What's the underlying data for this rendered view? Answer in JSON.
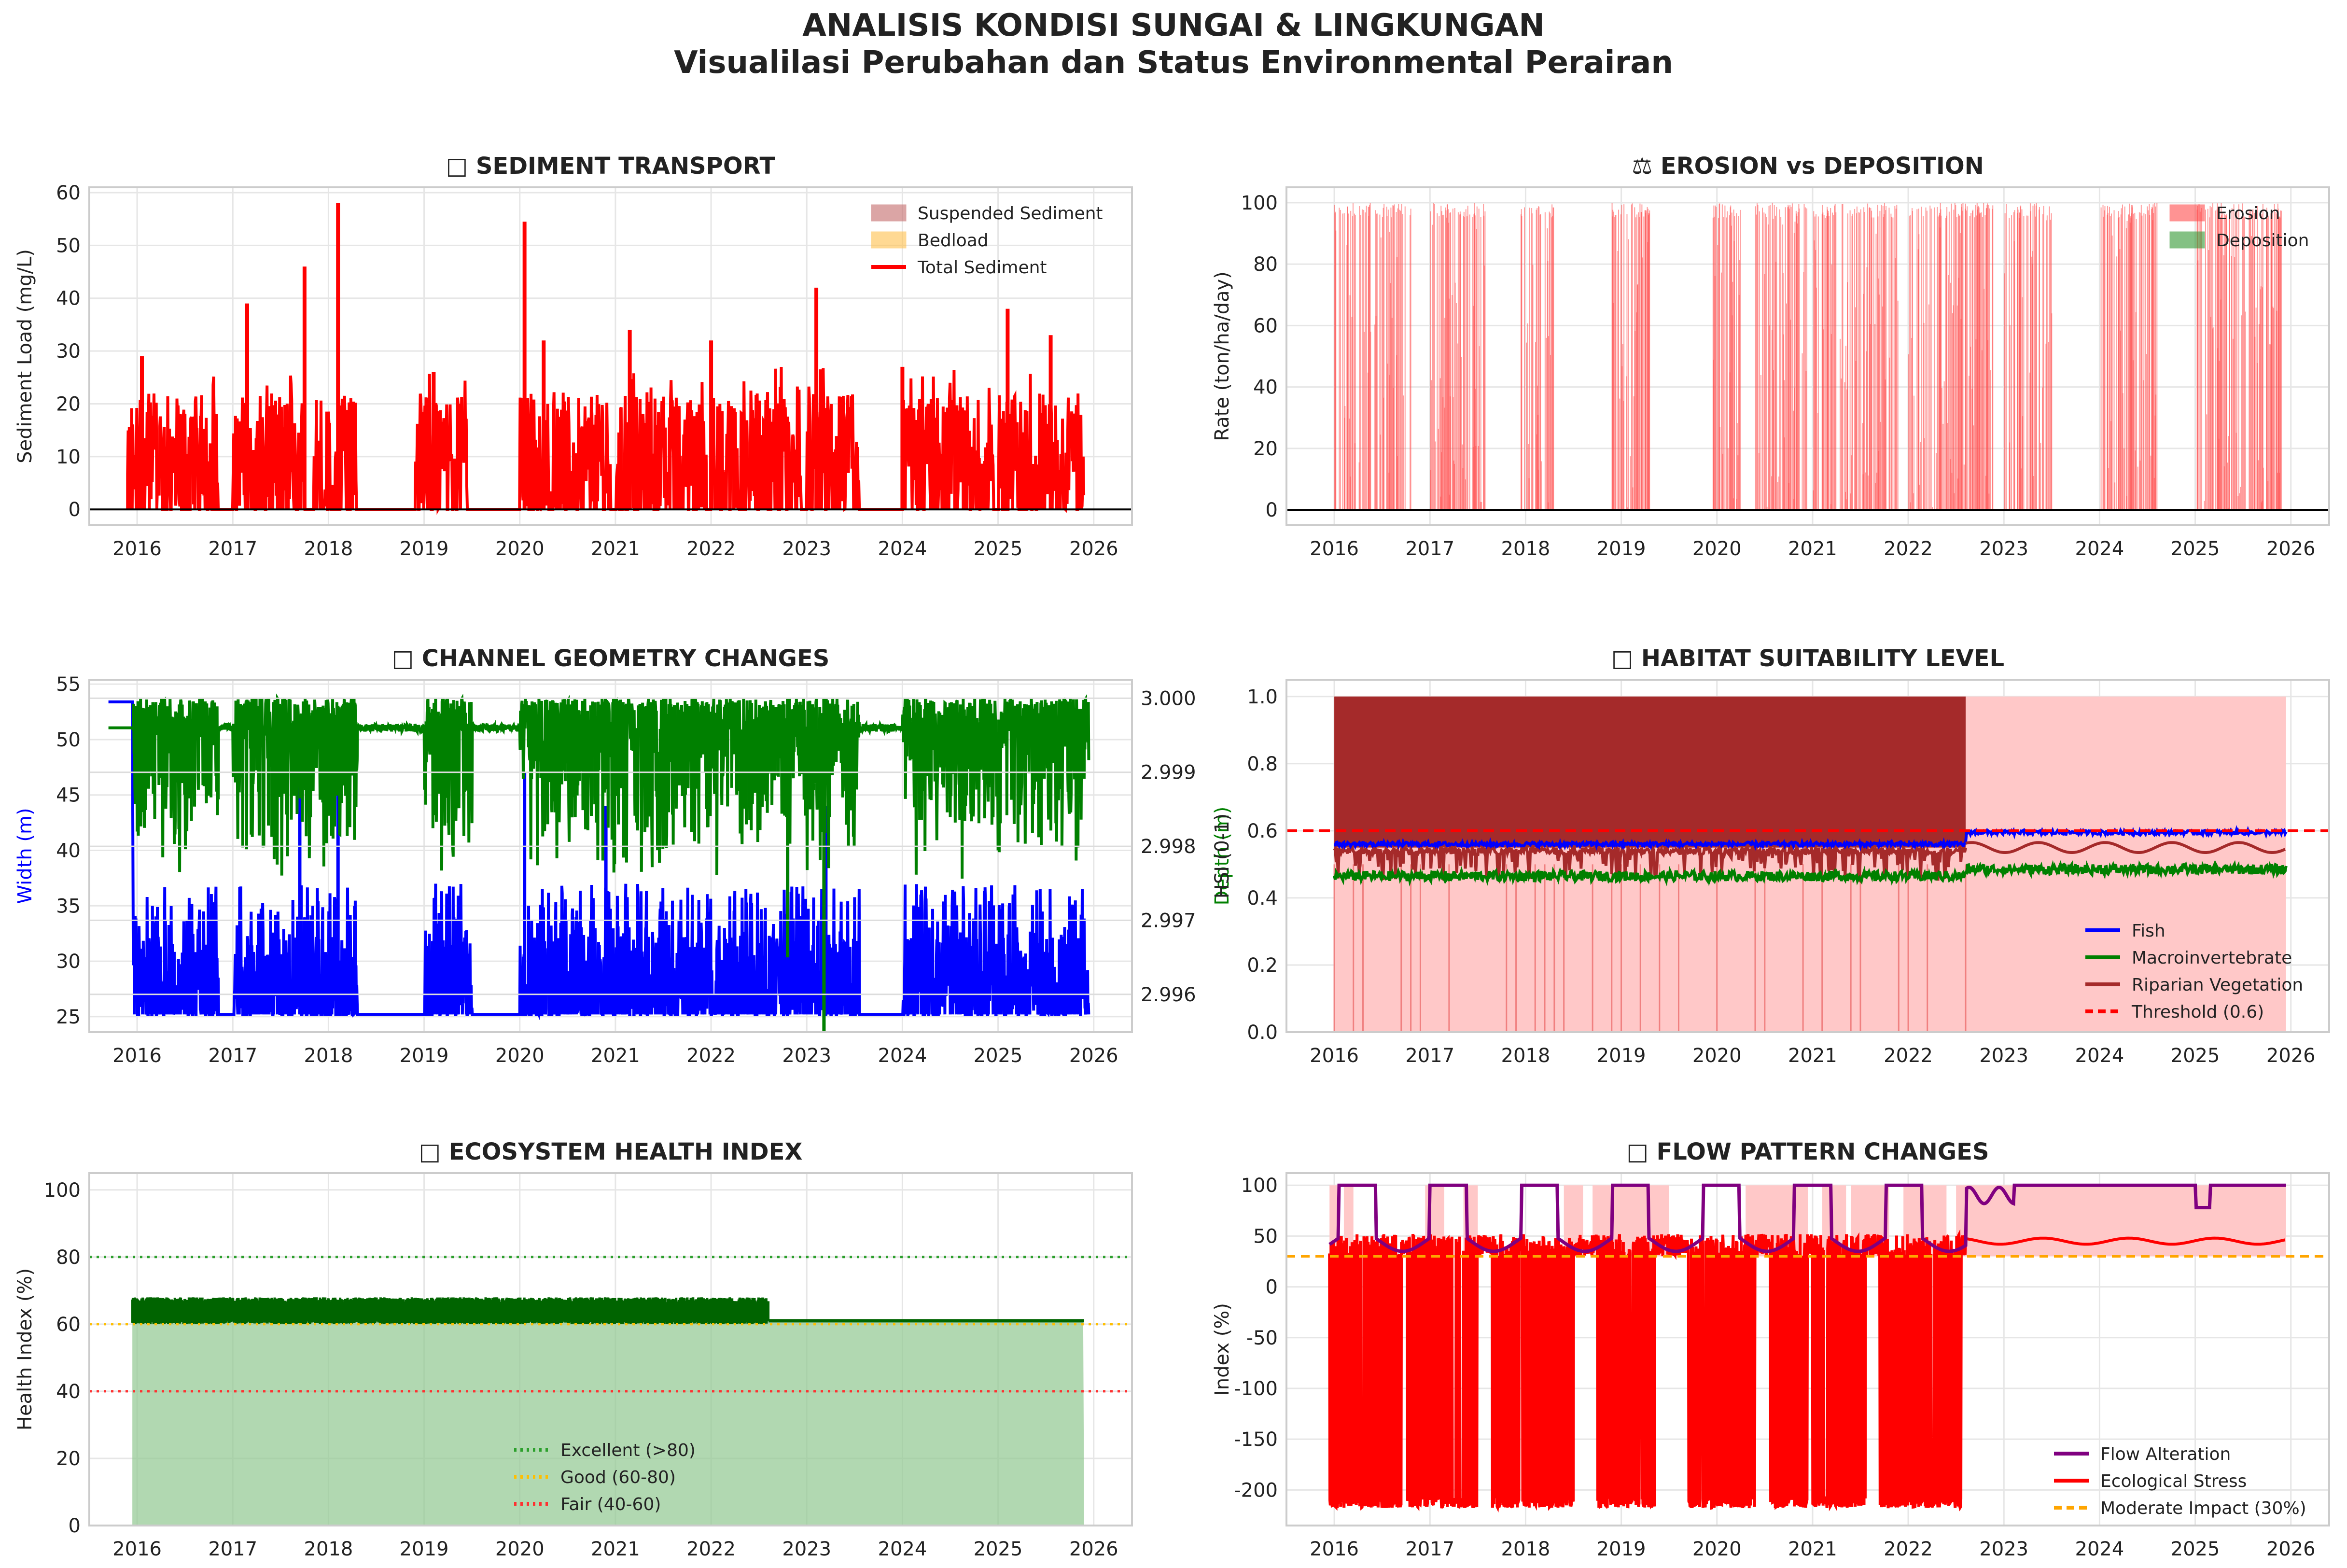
{
  "figure": {
    "title": "ANALISIS KONDISI SUNGAI & LINGKUNGAN",
    "subtitle": "Visualilasi Perubahan dan Status Environmental Perairan"
  },
  "chart_data": [
    {
      "id": "sediment",
      "type": "area",
      "title": "□ SEDIMENT TRANSPORT",
      "xlabel": "",
      "ylabel": "Sediment Load (mg/L)",
      "xlim": [
        2015.5,
        2026.4
      ],
      "ylim": [
        -3,
        61
      ],
      "xticks": [
        "2016",
        "2017",
        "2018",
        "2019",
        "2020",
        "2021",
        "2022",
        "2023",
        "2024",
        "2025",
        "2026"
      ],
      "yticks": [
        0,
        10,
        20,
        30,
        40,
        50,
        60
      ],
      "grid": true,
      "legend": "top-right",
      "series": [
        {
          "name": "Suspended Sediment",
          "kind": "area",
          "color": "#c46a6a"
        },
        {
          "name": "Bedload",
          "kind": "area",
          "color": "#ffc04d"
        },
        {
          "name": "Total Sediment",
          "kind": "line",
          "color": "#ff0000"
        }
      ],
      "wet_seasons": [
        [
          2015.9,
          2016.85
        ],
        [
          2017.0,
          2017.75
        ],
        [
          2017.85,
          2018.3
        ],
        [
          2018.9,
          2019.45
        ],
        [
          2020.0,
          2020.95
        ],
        [
          2021.0,
          2021.95
        ],
        [
          2022.0,
          2022.95
        ],
        [
          2023.0,
          2023.55
        ],
        [
          2024.0,
          2024.95
        ],
        [
          2025.0,
          2025.9
        ]
      ],
      "peaks": [
        [
          2016.05,
          29
        ],
        [
          2017.15,
          39
        ],
        [
          2017.75,
          46
        ],
        [
          2018.1,
          58
        ],
        [
          2019.1,
          26
        ],
        [
          2020.05,
          54.5
        ],
        [
          2020.25,
          32
        ],
        [
          2021.15,
          34
        ],
        [
          2022.0,
          32
        ],
        [
          2023.1,
          42
        ],
        [
          2024.0,
          27
        ],
        [
          2025.1,
          38
        ],
        [
          2025.55,
          33
        ]
      ],
      "typical_max": 22
    },
    {
      "id": "erosion",
      "type": "area",
      "title": "⚖ EROSION vs DEPOSITION",
      "xlabel": "",
      "ylabel": "Rate (ton/ha/day)",
      "xlim": [
        2015.5,
        2026.4
      ],
      "ylim": [
        -5,
        105
      ],
      "xticks": [
        "2016",
        "2017",
        "2018",
        "2019",
        "2020",
        "2021",
        "2022",
        "2023",
        "2024",
        "2025",
        "2026"
      ],
      "yticks": [
        0,
        20,
        40,
        60,
        80,
        100
      ],
      "grid": true,
      "legend": "top-right",
      "series": [
        {
          "name": "Erosion",
          "kind": "area",
          "color": "#ff4d4d"
        },
        {
          "name": "Deposition",
          "kind": "area",
          "color": "#339933"
        }
      ],
      "wet_seasons": [
        [
          2016.0,
          2016.8
        ],
        [
          2017.0,
          2017.6
        ],
        [
          2017.95,
          2018.3
        ],
        [
          2018.9,
          2019.3
        ],
        [
          2019.95,
          2020.25
        ],
        [
          2020.4,
          2020.95
        ],
        [
          2021.0,
          2021.9
        ],
        [
          2022.0,
          2022.9
        ],
        [
          2023.0,
          2023.5
        ],
        [
          2024.0,
          2024.6
        ],
        [
          2025.0,
          2025.9
        ]
      ],
      "max_value": 100
    },
    {
      "id": "channel",
      "type": "line",
      "title": "□ CHANNEL GEOMETRY CHANGES",
      "xlabel": "",
      "ylabel": "Width (m)",
      "ylabel_right": "Depth (m)",
      "xlim": [
        2015.5,
        2026.4
      ],
      "ylim": [
        23.6,
        55.4
      ],
      "ylim_right": [
        2.99549,
        3.00025
      ],
      "xticks": [
        "2016",
        "2017",
        "2018",
        "2019",
        "2020",
        "2021",
        "2022",
        "2023",
        "2024",
        "2025",
        "2026"
      ],
      "yticks": [
        25,
        30,
        35,
        40,
        45,
        50,
        55
      ],
      "yticks_right": [
        "2.996",
        "2.997",
        "2.998",
        "2.999",
        "3.000"
      ],
      "grid": true,
      "series": [
        {
          "name": "Width",
          "kind": "line",
          "color": "#0000ff",
          "axis": "left",
          "base": 25.2,
          "typical_max": 37,
          "spikes": [
            [
              2017.7,
              48
            ],
            [
              2018.1,
              46
            ],
            [
              2020.05,
              47
            ],
            [
              2020.9,
              44
            ],
            [
              2022.8,
              40
            ],
            [
              2023.2,
              44
            ]
          ]
        },
        {
          "name": "Depth",
          "kind": "line",
          "color": "#008000",
          "axis": "right",
          "base": 2.9996,
          "min": 2.9955,
          "max": 3.0
        }
      ],
      "dry_periods": [
        [
          2016.85,
          2017.0
        ],
        [
          2018.3,
          2019.0
        ],
        [
          2019.5,
          2020.0
        ],
        [
          2023.55,
          2024.0
        ]
      ]
    },
    {
      "id": "habitat",
      "type": "line",
      "title": "□ HABITAT SUITABILITY LEVEL",
      "xlabel": "",
      "ylabel": "HSI (0-1)",
      "xlim": [
        2015.5,
        2026.4
      ],
      "ylim": [
        0,
        1.05
      ],
      "xticks": [
        "2016",
        "2017",
        "2018",
        "2019",
        "2020",
        "2021",
        "2022",
        "2023",
        "2024",
        "2025",
        "2026"
      ],
      "yticks": [
        "0.0",
        "0.2",
        "0.4",
        "0.6",
        "0.8",
        "1.0"
      ],
      "grid": true,
      "legend": "bottom-right",
      "series": [
        {
          "name": "Fish",
          "kind": "line",
          "color": "#0000ff",
          "values_before": 0.56,
          "values_after": 0.595
        },
        {
          "name": "Macroinvertebrate",
          "kind": "line",
          "color": "#008000",
          "values_before": 0.465,
          "values_after": 0.485
        },
        {
          "name": "Riparian Vegetation",
          "kind": "line",
          "color": "#a52a2a",
          "values_before": [
            0.45,
            1.0
          ],
          "values_after": 0.55
        },
        {
          "name": "Threshold (0.6)",
          "kind": "hline",
          "color": "#ff0000",
          "value": 0.6
        }
      ],
      "shade_range": [
        2016.0,
        2025.95
      ],
      "regime_change": 2022.6
    },
    {
      "id": "ecosystem",
      "type": "area",
      "title": "□ ECOSYSTEM HEALTH INDEX",
      "xlabel": "",
      "ylabel": "Health Index (%)",
      "xlim": [
        2015.5,
        2026.4
      ],
      "ylim": [
        0,
        105
      ],
      "xticks": [
        "2016",
        "2017",
        "2018",
        "2019",
        "2020",
        "2021",
        "2022",
        "2023",
        "2024",
        "2025",
        "2026"
      ],
      "yticks": [
        0,
        20,
        40,
        60,
        80,
        100
      ],
      "grid": true,
      "legend": "bottom-center",
      "series": [
        {
          "name": "Health Index",
          "kind": "area",
          "color": "#006400",
          "band_before": [
            60,
            68
          ],
          "value_after": 61
        },
        {
          "name": "Excellent (>80)",
          "kind": "hline",
          "color": "#2ca02c",
          "value": 80
        },
        {
          "name": "Good (60-80)",
          "kind": "hline",
          "color": "#ffbf00",
          "value": 60
        },
        {
          "name": "Fair (40-60)",
          "kind": "hline",
          "color": "#ff3030",
          "value": 40
        }
      ],
      "regime_change": 2022.6,
      "range": [
        2015.95,
        2025.9
      ]
    },
    {
      "id": "flow",
      "type": "line",
      "title": "□ FLOW PATTERN CHANGES",
      "xlabel": "",
      "ylabel": "Index (%)",
      "xlim": [
        2015.5,
        2026.4
      ],
      "ylim": [
        -235,
        112
      ],
      "xticks": [
        "2016",
        "2017",
        "2018",
        "2019",
        "2020",
        "2021",
        "2022",
        "2023",
        "2024",
        "2025",
        "2026"
      ],
      "yticks": [
        -200,
        -150,
        -100,
        -50,
        0,
        50,
        100
      ],
      "grid": true,
      "legend": "bottom-right",
      "series": [
        {
          "name": "Flow Alteration",
          "kind": "line",
          "color": "#800080"
        },
        {
          "name": "Ecological Stress",
          "kind": "line",
          "color": "#ff0000",
          "min": -218,
          "max": 52,
          "value_after": 45
        },
        {
          "name": "Moderate Impact (30%)",
          "kind": "hline",
          "color": "#ffa500",
          "value": 30
        }
      ],
      "stress_dips": [
        [
          2015.95,
          2016.7
        ],
        [
          2016.75,
          2017.5
        ],
        [
          2017.65,
          2018.5
        ],
        [
          2018.75,
          2019.35
        ],
        [
          2019.7,
          2020.4
        ],
        [
          2020.55,
          2020.95
        ],
        [
          2021.0,
          2021.55
        ],
        [
          2021.7,
          2022.55
        ]
      ],
      "regime_change": 2022.6
    }
  ]
}
